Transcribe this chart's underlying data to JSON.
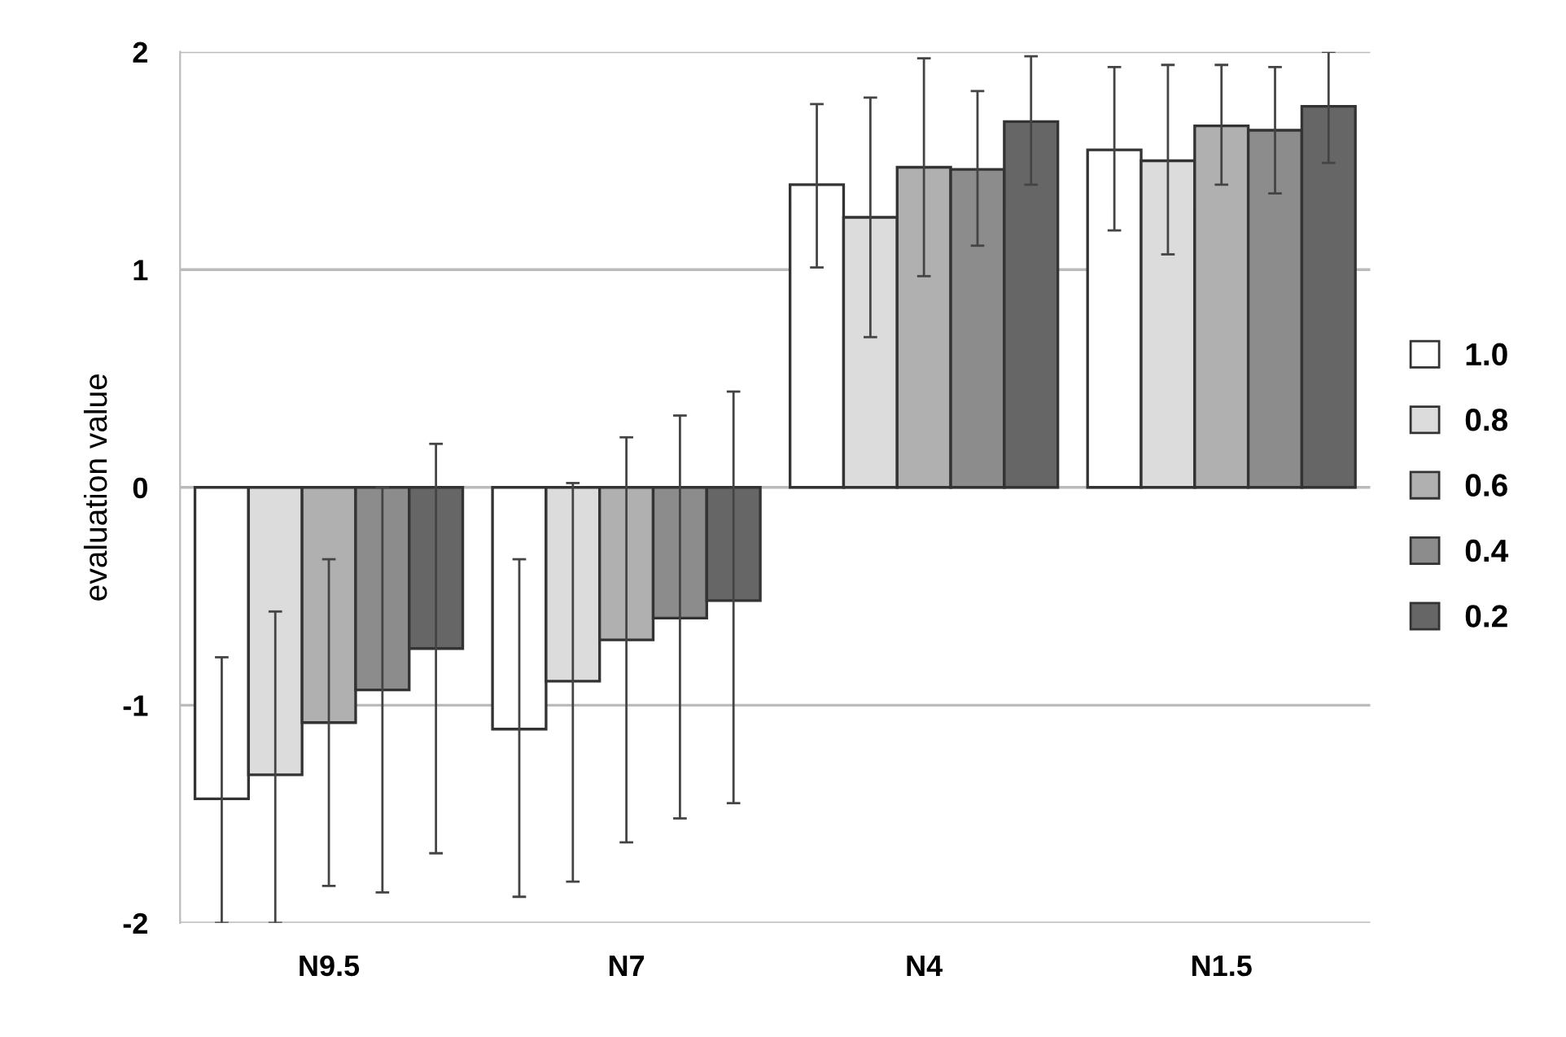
{
  "chart_data": {
    "type": "bar",
    "ylabel": "evaluation value",
    "categories": [
      "N9.5",
      "N7",
      "N4",
      "N1.5"
    ],
    "series": [
      {
        "name": "1.0",
        "color": "#ffffff",
        "values": [
          -1.43,
          -1.11,
          1.39,
          1.55
        ],
        "errors": [
          [
            -2.0,
            -0.78
          ],
          [
            -1.88,
            -0.33
          ],
          [
            1.01,
            1.76
          ],
          [
            1.18,
            1.93
          ]
        ]
      },
      {
        "name": "0.8",
        "color": "#dcdcdc",
        "values": [
          -1.32,
          -0.89,
          1.24,
          1.5
        ],
        "errors": [
          [
            -2.0,
            -0.57
          ],
          [
            -1.81,
            0.02
          ],
          [
            0.69,
            1.79
          ],
          [
            1.07,
            1.94
          ]
        ]
      },
      {
        "name": "0.6",
        "color": "#b0b0b0",
        "values": [
          -1.08,
          -0.7,
          1.47,
          1.66
        ],
        "errors": [
          [
            -1.83,
            -0.33
          ],
          [
            -1.63,
            0.23
          ],
          [
            0.97,
            1.97
          ],
          [
            1.39,
            1.94
          ]
        ]
      },
      {
        "name": "0.4",
        "color": "#8c8c8c",
        "values": [
          -0.93,
          -0.6,
          1.46,
          1.64
        ],
        "errors": [
          [
            -1.86,
            0.0
          ],
          [
            -1.52,
            0.33
          ],
          [
            1.11,
            1.82
          ],
          [
            1.35,
            1.93
          ]
        ]
      },
      {
        "name": "0.2",
        "color": "#666666",
        "values": [
          -0.74,
          -0.52,
          1.68,
          1.75
        ],
        "errors": [
          [
            -1.68,
            0.2
          ],
          [
            -1.45,
            0.44
          ],
          [
            1.39,
            1.98
          ],
          [
            1.49,
            2.0
          ]
        ]
      }
    ],
    "ylim": [
      -2,
      2
    ],
    "yticks": [
      {
        "value": 2,
        "label": "2"
      },
      {
        "value": 1,
        "label": "1"
      },
      {
        "value": 0,
        "label": "0"
      },
      {
        "value": -1,
        "label": "-1"
      },
      {
        "value": -2,
        "label": "-2"
      }
    ],
    "grid": "y",
    "legend": "right"
  }
}
